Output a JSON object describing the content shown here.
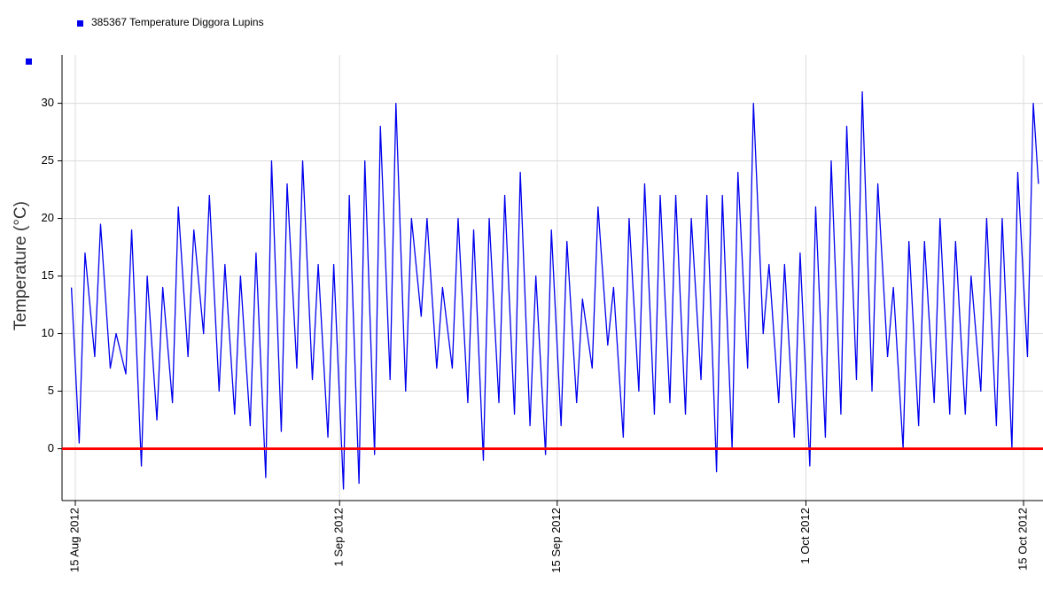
{
  "chart_data": {
    "type": "line",
    "legend": "385367  Temperature Diggora Lupins",
    "ylabel": "Temperature (°C)",
    "legend_position": "top-left",
    "grid": true,
    "xlim": [
      "2012-08-14T03:30",
      "2012-10-16T06:00"
    ],
    "xticks": [
      {
        "value": "2012-08-15T00:00",
        "label": "15 Aug 2012"
      },
      {
        "value": "2012-09-01T00:00",
        "label": "1 Sep 2012"
      },
      {
        "value": "2012-09-15T00:00",
        "label": "15 Sep 2012"
      },
      {
        "value": "2012-10-01T00:00",
        "label": "1 Oct 2012"
      },
      {
        "value": "2012-10-15T00:00",
        "label": "15 Oct 2012"
      }
    ],
    "ylim": [
      -4.5,
      34.2
    ],
    "yticks": [
      0,
      5,
      10,
      15,
      20,
      25,
      30
    ],
    "reference_line": {
      "value": 0,
      "color": "#ff0000"
    },
    "x": [
      "2012-08-14T18:00",
      "2012-08-15T06:00",
      "2012-08-15T15:00",
      "2012-08-16T06:00",
      "2012-08-16T15:00",
      "2012-08-17T06:00",
      "2012-08-17T15:00",
      "2012-08-18T06:00",
      "2012-08-18T15:00",
      "2012-08-19T06:00",
      "2012-08-19T15:00",
      "2012-08-20T06:00",
      "2012-08-20T15:00",
      "2012-08-21T06:00",
      "2012-08-21T15:00",
      "2012-08-22T06:00",
      "2012-08-22T15:00",
      "2012-08-23T06:00",
      "2012-08-23T15:00",
      "2012-08-24T06:00",
      "2012-08-24T15:00",
      "2012-08-25T06:00",
      "2012-08-25T15:00",
      "2012-08-26T06:00",
      "2012-08-26T15:00",
      "2012-08-27T06:00",
      "2012-08-27T15:00",
      "2012-08-28T06:00",
      "2012-08-28T15:00",
      "2012-08-29T06:00",
      "2012-08-29T15:00",
      "2012-08-30T06:00",
      "2012-08-30T15:00",
      "2012-08-31T06:00",
      "2012-08-31T15:00",
      "2012-09-01T06:00",
      "2012-09-01T15:00",
      "2012-09-02T06:00",
      "2012-09-02T15:00",
      "2012-09-03T06:00",
      "2012-09-03T15:00",
      "2012-09-04T06:00",
      "2012-09-04T15:00",
      "2012-09-05T06:00",
      "2012-09-05T15:00",
      "2012-09-06T06:00",
      "2012-09-06T15:00",
      "2012-09-07T06:00",
      "2012-09-07T15:00",
      "2012-09-08T06:00",
      "2012-09-08T15:00",
      "2012-09-09T06:00",
      "2012-09-09T15:00",
      "2012-09-10T06:00",
      "2012-09-10T15:00",
      "2012-09-11T06:00",
      "2012-09-11T15:00",
      "2012-09-12T06:00",
      "2012-09-12T15:00",
      "2012-09-13T06:00",
      "2012-09-13T15:00",
      "2012-09-14T06:00",
      "2012-09-14T15:00",
      "2012-09-15T06:00",
      "2012-09-15T15:00",
      "2012-09-16T06:00",
      "2012-09-16T15:00",
      "2012-09-17T06:00",
      "2012-09-17T15:00",
      "2012-09-18T06:00",
      "2012-09-18T15:00",
      "2012-09-19T06:00",
      "2012-09-19T15:00",
      "2012-09-20T06:00",
      "2012-09-20T15:00",
      "2012-09-21T06:00",
      "2012-09-21T15:00",
      "2012-09-22T06:00",
      "2012-09-22T15:00",
      "2012-09-23T06:00",
      "2012-09-23T15:00",
      "2012-09-24T06:00",
      "2012-09-24T15:00",
      "2012-09-25T06:00",
      "2012-09-25T15:00",
      "2012-09-26T06:00",
      "2012-09-26T15:00",
      "2012-09-27T06:00",
      "2012-09-27T15:00",
      "2012-09-28T06:00",
      "2012-09-28T15:00",
      "2012-09-29T06:00",
      "2012-09-29T15:00",
      "2012-09-30T06:00",
      "2012-09-30T15:00",
      "2012-10-01T06:00",
      "2012-10-01T15:00",
      "2012-10-02T06:00",
      "2012-10-02T15:00",
      "2012-10-03T06:00",
      "2012-10-03T15:00",
      "2012-10-04T06:00",
      "2012-10-04T15:00",
      "2012-10-05T06:00",
      "2012-10-05T15:00",
      "2012-10-06T06:00",
      "2012-10-06T15:00",
      "2012-10-07T06:00",
      "2012-10-07T15:00",
      "2012-10-08T06:00",
      "2012-10-08T15:00",
      "2012-10-09T06:00",
      "2012-10-09T15:00",
      "2012-10-10T06:00",
      "2012-10-10T15:00",
      "2012-10-11T06:00",
      "2012-10-11T15:00",
      "2012-10-12T06:00",
      "2012-10-12T15:00",
      "2012-10-13T06:00",
      "2012-10-13T15:00",
      "2012-10-14T06:00",
      "2012-10-14T15:00",
      "2012-10-15T06:00",
      "2012-10-15T15:00",
      "2012-10-15T23:00"
    ],
    "series": [
      {
        "name": "385367  Temperature Diggora Lupins",
        "color": "#0000ee",
        "values": [
          14,
          0.5,
          17,
          8,
          19.5,
          7,
          10,
          6.5,
          19,
          -1.5,
          15,
          2.5,
          14,
          4,
          21,
          8,
          19,
          10,
          22,
          5,
          16,
          3,
          15,
          2,
          17,
          -2.5,
          25,
          1.5,
          23,
          7,
          25,
          6,
          16,
          1,
          16,
          -3.5,
          22,
          -3,
          25,
          -0.5,
          28,
          6,
          30,
          5,
          20,
          11.5,
          20,
          7,
          14,
          7,
          20,
          4,
          19,
          -1,
          20,
          4,
          22,
          3,
          24,
          2,
          15,
          -0.5,
          19,
          2,
          18,
          4,
          13,
          7,
          21,
          9,
          14,
          1,
          20,
          5,
          23,
          3,
          22,
          4,
          22,
          3,
          20,
          6,
          22,
          -2,
          22,
          0,
          24,
          7,
          30,
          10,
          16,
          4,
          16,
          1,
          17,
          -1.5,
          21,
          1,
          25,
          3,
          28,
          6,
          31,
          5,
          23,
          8,
          14,
          0,
          18,
          2,
          18,
          4,
          20,
          3,
          18,
          3,
          15,
          5,
          20,
          2,
          20,
          0,
          24,
          8,
          30,
          23
        ]
      }
    ]
  }
}
